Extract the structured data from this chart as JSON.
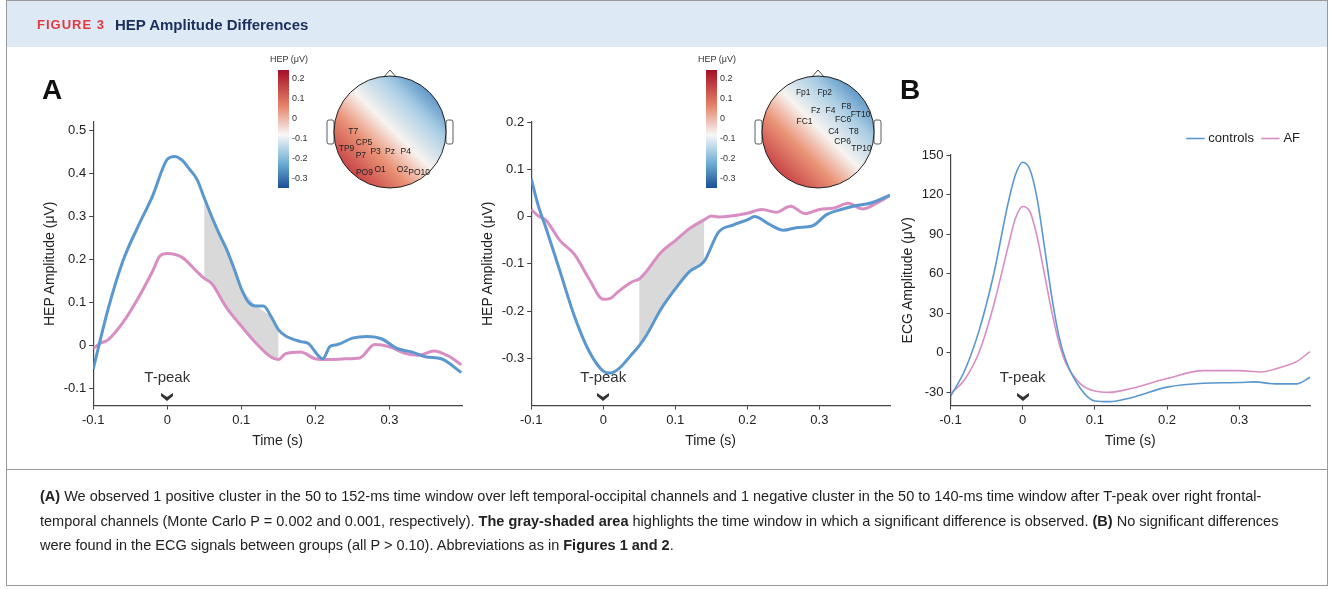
{
  "chart_data": [
    {
      "type": "other",
      "title": "FIGURE 3",
      "subtitle": "HEP Amplitude Differences"
    },
    {
      "type": "line",
      "title": "A",
      "xlabel": "Time (s)",
      "ylabel": "HEP Amplitude (μV)",
      "xlim": [
        -0.1,
        0.398
      ],
      "ylim": [
        -0.14,
        0.52
      ],
      "xticks": [
        -0.1,
        0,
        0.1,
        0.2,
        0.3
      ],
      "yticks": [
        -0.1,
        0,
        0.1,
        0.2,
        0.3,
        0.4,
        0.5
      ],
      "grid": false,
      "legend": false,
      "marker": "none",
      "annotations": [
        "T-peak",
        "HEP (μV)",
        "0.2",
        "0.1",
        "0",
        "-0.1",
        "-0.2",
        "-0.3",
        "T7",
        "CP5",
        "TP9",
        "P7",
        "P3",
        "Pz",
        "P4",
        "PO9",
        "O1",
        "O2",
        "PO10"
      ],
      "series": [
        {
          "color": "#5a97cf",
          "x": [
            -0.1,
            -0.08,
            -0.06,
            -0.04,
            -0.02,
            0,
            0.01,
            0.02,
            0.03,
            0.04,
            0.05,
            0.06,
            0.07,
            0.08,
            0.09,
            0.1,
            0.11,
            0.12,
            0.13,
            0.14,
            0.15,
            0.16,
            0.18,
            0.19,
            0.21,
            0.22,
            0.23,
            0.25,
            0.27,
            0.29,
            0.31,
            0.33,
            0.35,
            0.37,
            0.397
          ],
          "values": [
            -0.055,
            0.084,
            0.196,
            0.275,
            0.347,
            0.433,
            0.44,
            0.431,
            0.41,
            0.387,
            0.343,
            0.3,
            0.26,
            0.224,
            0.18,
            0.132,
            0.1,
            0.092,
            0.092,
            0.068,
            0.037,
            0.022,
            0.009,
            0.005,
            -0.031,
            -0.002,
            0.002,
            0.017,
            0.021,
            0.015,
            -0.007,
            -0.015,
            -0.027,
            -0.031,
            -0.063
          ]
        },
        {
          "color": "#d88dc3",
          "x": [
            -0.1,
            -0.09,
            -0.08,
            -0.06,
            -0.04,
            -0.02,
            -0.01,
            0,
            0.02,
            0.04,
            0.05,
            0.06,
            0.08,
            0.1,
            0.12,
            0.14,
            0.15,
            0.16,
            0.18,
            0.2,
            0.22,
            0.24,
            0.26,
            0.28,
            0.3,
            0.32,
            0.34,
            0.36,
            0.38,
            0.397
          ],
          "values": [
            -0.007,
            0.005,
            0.013,
            0.053,
            0.108,
            0.172,
            0.208,
            0.214,
            0.205,
            0.172,
            0.156,
            0.144,
            0.088,
            0.045,
            0.005,
            -0.027,
            -0.033,
            -0.019,
            -0.015,
            -0.031,
            -0.033,
            -0.031,
            -0.029,
            0.002,
            -0.003,
            -0.018,
            -0.023,
            -0.013,
            -0.025,
            -0.045
          ],
          "lower": [
            null,
            null,
            null,
            null,
            null,
            null,
            null,
            null,
            null,
            null,
            0.156,
            0.144,
            0.088,
            0.045,
            0.005,
            -0.027,
            -0.033,
            null,
            null,
            null,
            null,
            null,
            null,
            null,
            null,
            null,
            null,
            null,
            null,
            null
          ],
          "upper": [
            null,
            null,
            null,
            null,
            null,
            null,
            null,
            null,
            null,
            null,
            0.343,
            0.3,
            0.224,
            0.132,
            0.092,
            0.068,
            0.037,
            null,
            null,
            null,
            null,
            null,
            null,
            null,
            null,
            null,
            null,
            null,
            null,
            null
          ]
        }
      ]
    },
    {
      "type": "line",
      "xlabel": "Time (s)",
      "ylabel": "HEP Amplitude (μV)",
      "xlim": [
        -0.1,
        0.398
      ],
      "ylim": [
        -0.4,
        0.2
      ],
      "xticks": [
        -0.1,
        0,
        0.1,
        0.2,
        0.3
      ],
      "yticks": [
        -0.3,
        -0.2,
        -0.1,
        0,
        0.1,
        0.2
      ],
      "grid": false,
      "legend": false,
      "marker": "none",
      "annotations": [
        "T-peak",
        "HEP (μV)",
        "0.2",
        "0.1",
        "0",
        "-0.1",
        "-0.2",
        "-0.3",
        "Fp1",
        "Fp2",
        "F8",
        "FT10",
        "Fz",
        "F4",
        "FC1",
        "FC6",
        "C4",
        "T8",
        "CP6",
        "TP10"
      ],
      "series": [
        {
          "color": "#5a97cf",
          "x": [
            -0.1,
            -0.09,
            -0.08,
            -0.06,
            -0.04,
            -0.02,
            0,
            0.01,
            0.02,
            0.04,
            0.05,
            0.06,
            0.08,
            0.1,
            0.12,
            0.14,
            0.16,
            0.18,
            0.2,
            0.21,
            0.23,
            0.25,
            0.27,
            0.29,
            0.31,
            0.33,
            0.35,
            0.37,
            0.398
          ],
          "values": [
            0.08,
            0.022,
            -0.022,
            -0.116,
            -0.211,
            -0.284,
            -0.327,
            -0.331,
            -0.324,
            -0.291,
            -0.273,
            -0.251,
            -0.196,
            -0.153,
            -0.116,
            -0.095,
            -0.033,
            -0.018,
            -0.007,
            0,
            -0.016,
            -0.029,
            -0.023,
            -0.02,
            0.004,
            0.015,
            0.023,
            0.028,
            0.045
          ]
        },
        {
          "color": "#d88dc3",
          "x": [
            -0.1,
            -0.09,
            -0.08,
            -0.06,
            -0.04,
            -0.02,
            0,
            0.01,
            0.02,
            0.04,
            0.05,
            0.06,
            0.08,
            0.1,
            0.12,
            0.14,
            0.15,
            0.16,
            0.2,
            0.22,
            0.24,
            0.26,
            0.28,
            0.3,
            0.32,
            0.34,
            0.36,
            0.38,
            0.398
          ],
          "values": [
            0.015,
            0.001,
            -0.007,
            -0.051,
            -0.08,
            -0.131,
            -0.175,
            -0.173,
            -0.16,
            -0.138,
            -0.132,
            -0.116,
            -0.076,
            -0.051,
            -0.025,
            -0.007,
            0.001,
            -0.001,
            0.007,
            0.015,
            0.009,
            0.022,
            0.006,
            0.015,
            0.018,
            0.028,
            0.016,
            0.029,
            0.045
          ],
          "lower": [
            null,
            null,
            null,
            null,
            null,
            null,
            null,
            null,
            null,
            null,
            -0.273,
            -0.251,
            -0.196,
            -0.153,
            -0.116,
            -0.095,
            null,
            null,
            null,
            null,
            null,
            null,
            null,
            null,
            null,
            null,
            null,
            null,
            null
          ],
          "upper": [
            null,
            null,
            null,
            null,
            null,
            null,
            null,
            null,
            null,
            null,
            -0.132,
            -0.116,
            -0.076,
            -0.051,
            -0.025,
            -0.007,
            null,
            null,
            null,
            null,
            null,
            null,
            null,
            null,
            null,
            null,
            null,
            null,
            null
          ]
        }
      ]
    },
    {
      "type": "line",
      "title": "B",
      "xlabel": "Time (s)",
      "ylabel": "ECG Amplitude (μV)",
      "xlim": [
        -0.1,
        0.398
      ],
      "ylim": [
        -40,
        150
      ],
      "xticks": [
        -0.1,
        0,
        0.1,
        0.2,
        0.3
      ],
      "yticks": [
        -30,
        0,
        30,
        60,
        90,
        120,
        150
      ],
      "grid": false,
      "legend": "top right",
      "marker": "none",
      "annotations": [
        "T-peak"
      ],
      "series": [
        {
          "name": "controls",
          "color": "#5a97cf",
          "x": [
            -0.1,
            -0.08,
            -0.06,
            -0.04,
            -0.02,
            -0.01,
            0,
            0.01,
            0.02,
            0.03,
            0.04,
            0.05,
            0.06,
            0.08,
            0.1,
            0.12,
            0.15,
            0.2,
            0.25,
            0.3,
            0.32,
            0.35,
            0.38,
            0.398
          ],
          "values": [
            -33,
            -13,
            17.6,
            60,
            114,
            135,
            144.5,
            139,
            117,
            81,
            43.5,
            13,
            -6,
            -27,
            -36.5,
            -37,
            -34,
            -26,
            -23,
            -22.5,
            -22,
            -23.5,
            -23.5,
            -18.5
          ]
        },
        {
          "name": "AF",
          "color": "#d88dc3",
          "x": [
            -0.1,
            -0.08,
            -0.06,
            -0.04,
            -0.02,
            -0.01,
            0,
            0.01,
            0.02,
            0.03,
            0.04,
            0.05,
            0.06,
            0.08,
            0.1,
            0.12,
            0.15,
            0.2,
            0.25,
            0.3,
            0.33,
            0.36,
            0.38,
            0.398
          ],
          "values": [
            -31,
            -20,
            1,
            36.5,
            81,
            102,
            111,
            107,
            88,
            60,
            32,
            8,
            -8,
            -23.5,
            -29,
            -30,
            -27,
            -19.5,
            -13.5,
            -13.5,
            -14.5,
            -10.5,
            -6.5,
            1
          ]
        }
      ]
    },
    {
      "type": "other",
      "annotations": [
        "(A)",
        " We observed 1 positive cluster in the 50 to 152-ms time window over left temporal-occipital channels and 1 negative cluster in the 50 to 140-ms time window after T-peak over right frontal-temporal channels (Monte Carlo P = 0.002 and 0.001, respectively). ",
        "The gray-shaded area",
        " highlights the time window in which a significant difference is observed. ",
        "(B)",
        " No significant differences were found in the ECG signals between groups (all P > 0.10). Abbreviations as in ",
        "Figures 1 and 2",
        "."
      ]
    }
  ]
}
